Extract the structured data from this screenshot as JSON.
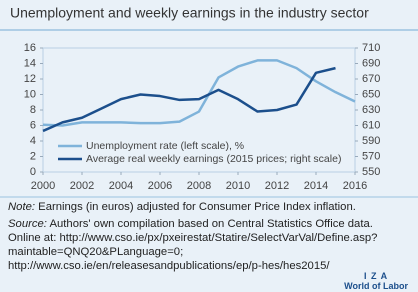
{
  "chart_data": {
    "type": "line",
    "title": "Unemployment and weekly earnings in the industry sector",
    "x": [
      2000,
      2001,
      2002,
      2003,
      2004,
      2005,
      2006,
      2007,
      2008,
      2009,
      2010,
      2011,
      2012,
      2013,
      2014,
      2015,
      2016
    ],
    "series": [
      {
        "name": "Unemployment rate (left scale), %",
        "color": "#7fb3da",
        "values": [
          6.1,
          6.0,
          6.4,
          6.4,
          6.4,
          6.3,
          6.3,
          6.5,
          7.8,
          12.2,
          13.6,
          14.4,
          14.4,
          13.4,
          11.7,
          10.3,
          9.1
        ]
      },
      {
        "name": "Average real weekly earnings (2015 prices; right scale)",
        "color": "#1c4f8c",
        "axis": "y2",
        "values": [
          603,
          614,
          620,
          632,
          644,
          650,
          648,
          643,
          644,
          656,
          644,
          628,
          630,
          637,
          678,
          684,
          null
        ]
      }
    ],
    "xlim": [
      2000,
      2016
    ],
    "xticks": [
      2000,
      2002,
      2004,
      2006,
      2008,
      2010,
      2012,
      2014,
      2016
    ],
    "ylim": [
      0,
      16
    ],
    "yticks": [
      0,
      2,
      4,
      6,
      8,
      10,
      12,
      14,
      16
    ],
    "y2lim": [
      550,
      710
    ],
    "y2ticks": [
      550,
      570,
      590,
      610,
      630,
      650,
      670,
      690,
      710
    ],
    "legend": "lower center"
  },
  "note_label": "Note:",
  "note": "Earnings (in euros) adjusted for Consumer Price Index inflation.",
  "source_label": "Source:",
  "source": "Authors' own compilation based on Central Statistics Office data. Online at: http://www.cso.ie/px/pxeirestat/Statire/SelectVarVal/Define.asp?maintable=QNQ20&PLanguage=0; http://www.cso.ie/en/releasesandpublications/ep/p-hes/hes2015/",
  "logo": {
    "mark": "I Z A",
    "name": "World of Labor"
  }
}
